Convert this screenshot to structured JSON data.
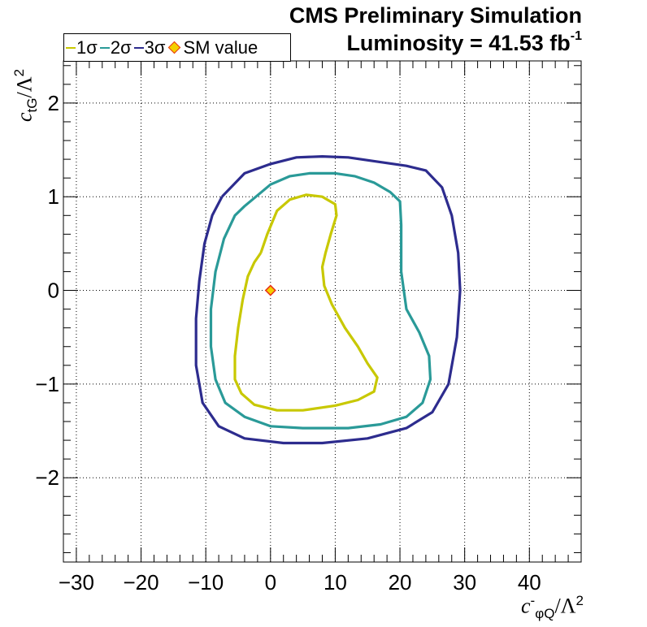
{
  "header": {
    "title_line1": "CMS Preliminary Simulation",
    "title_line2": "Luminosity = 41.53 fb",
    "title_line2_sup": "-1"
  },
  "legend": {
    "items": [
      {
        "label": "1σ",
        "color": "#c8c800"
      },
      {
        "label": "2σ",
        "color": "#2a9a98"
      },
      {
        "label": "3σ",
        "color": "#2d2c8e"
      },
      {
        "label": "SM value",
        "color": "#e83018"
      }
    ]
  },
  "axes": {
    "x_title_c": "c",
    "x_title_sup": "-",
    "x_title_sub": "φQ",
    "x_title_rest": "/Λ",
    "x_title_pow": "2",
    "y_title_c": "c",
    "y_title_sub": "tG",
    "y_title_rest": "/Λ",
    "y_title_pow": "2"
  },
  "chart_data": {
    "type": "line",
    "title": "CMS Preliminary Simulation",
    "subtitle": "Luminosity = 41.53 fb-1",
    "xlim": [
      -32,
      48
    ],
    "ylim": [
      -2.9,
      2.45
    ],
    "xticks": [
      -30,
      -20,
      -10,
      0,
      10,
      20,
      30,
      40
    ],
    "xtick_labels": [
      "−30",
      "−20",
      "−10",
      "0",
      "10",
      "20",
      "30",
      "40"
    ],
    "yticks": [
      -2,
      -1,
      0,
      1,
      2
    ],
    "ytick_labels": [
      "−2",
      "−1",
      "0",
      "1",
      "2"
    ],
    "grid": true,
    "legend_position": "top-left",
    "series": [
      {
        "name": "1σ",
        "color": "#c8c800",
        "points": [
          [
            -1.5,
            0.4
          ],
          [
            -0.5,
            0.6
          ],
          [
            1,
            0.85
          ],
          [
            3,
            0.97
          ],
          [
            5.5,
            1.02
          ],
          [
            8,
            1.0
          ],
          [
            10,
            0.92
          ],
          [
            10.2,
            0.8
          ],
          [
            9.3,
            0.6
          ],
          [
            8.5,
            0.4
          ],
          [
            8,
            0.25
          ],
          [
            8.3,
            0.05
          ],
          [
            9.5,
            -0.15
          ],
          [
            11.5,
            -0.4
          ],
          [
            13.5,
            -0.6
          ],
          [
            15,
            -0.78
          ],
          [
            16.5,
            -0.93
          ],
          [
            16,
            -1.08
          ],
          [
            13.5,
            -1.17
          ],
          [
            10,
            -1.23
          ],
          [
            5,
            -1.28
          ],
          [
            1,
            -1.28
          ],
          [
            -2.5,
            -1.22
          ],
          [
            -4.5,
            -1.1
          ],
          [
            -5.5,
            -0.95
          ],
          [
            -5.5,
            -0.7
          ],
          [
            -5,
            -0.4
          ],
          [
            -4.3,
            -0.1
          ],
          [
            -3.5,
            0.15
          ],
          [
            -2.5,
            0.3
          ],
          [
            -1.5,
            0.4
          ]
        ]
      },
      {
        "name": "2σ",
        "color": "#2a9a98",
        "points": [
          [
            -4,
            0.9
          ],
          [
            0,
            1.13
          ],
          [
            3,
            1.22
          ],
          [
            6,
            1.25
          ],
          [
            10,
            1.25
          ],
          [
            13,
            1.22
          ],
          [
            16,
            1.15
          ],
          [
            18.5,
            1.05
          ],
          [
            20,
            0.95
          ],
          [
            20.2,
            0.7
          ],
          [
            20.2,
            0.2
          ],
          [
            21,
            -0.2
          ],
          [
            23,
            -0.45
          ],
          [
            24.5,
            -0.7
          ],
          [
            24.7,
            -0.95
          ],
          [
            23.5,
            -1.2
          ],
          [
            21,
            -1.35
          ],
          [
            17,
            -1.43
          ],
          [
            12,
            -1.47
          ],
          [
            5,
            -1.47
          ],
          [
            0,
            -1.45
          ],
          [
            -4,
            -1.35
          ],
          [
            -7,
            -1.2
          ],
          [
            -8.5,
            -0.95
          ],
          [
            -9.2,
            -0.6
          ],
          [
            -9.2,
            -0.2
          ],
          [
            -8.5,
            0.2
          ],
          [
            -7.2,
            0.55
          ],
          [
            -5.5,
            0.8
          ],
          [
            -4,
            0.9
          ]
        ]
      },
      {
        "name": "3σ",
        "color": "#2d2c8e",
        "points": [
          [
            -7.5,
            1.0
          ],
          [
            -4,
            1.25
          ],
          [
            0,
            1.35
          ],
          [
            4,
            1.42
          ],
          [
            8,
            1.43
          ],
          [
            12,
            1.42
          ],
          [
            16,
            1.38
          ],
          [
            21,
            1.33
          ],
          [
            24,
            1.28
          ],
          [
            26.5,
            1.1
          ],
          [
            28,
            0.8
          ],
          [
            29,
            0.4
          ],
          [
            29.3,
            0.0
          ],
          [
            28.8,
            -0.5
          ],
          [
            27.5,
            -1.0
          ],
          [
            25,
            -1.3
          ],
          [
            21,
            -1.47
          ],
          [
            15,
            -1.58
          ],
          [
            8,
            -1.63
          ],
          [
            2,
            -1.63
          ],
          [
            -4,
            -1.58
          ],
          [
            -8,
            -1.45
          ],
          [
            -10.5,
            -1.2
          ],
          [
            -11.5,
            -0.8
          ],
          [
            -11.5,
            -0.3
          ],
          [
            -11,
            0.1
          ],
          [
            -10.2,
            0.5
          ],
          [
            -9,
            0.8
          ],
          [
            -7.5,
            1.0
          ]
        ]
      },
      {
        "name": "SM value",
        "color": "#e83018",
        "marker": "diamond",
        "points": [
          [
            0,
            0
          ]
        ]
      }
    ]
  }
}
